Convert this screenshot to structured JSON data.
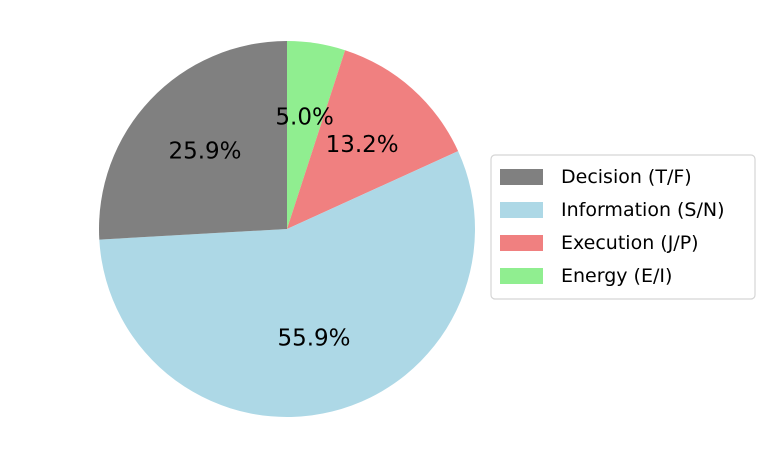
{
  "chart_data": {
    "type": "pie",
    "start_angle_deg": 90,
    "direction": "clockwise",
    "legend_position": "right",
    "slices": [
      {
        "label": "Energy (E/I)",
        "value": 5.0,
        "display": "5.0%",
        "color": "#90ee90"
      },
      {
        "label": "Execution (J/P)",
        "value": 13.2,
        "display": "13.2%",
        "color": "#f08080"
      },
      {
        "label": "Information (S/N)",
        "value": 55.9,
        "display": "55.9%",
        "color": "#add8e6"
      },
      {
        "label": "Decision (T/F)",
        "value": 25.9,
        "display": "25.9%",
        "color": "#808080"
      }
    ],
    "legend_order": [
      "Decision (T/F)",
      "Information (S/N)",
      "Execution (J/P)",
      "Energy (E/I)"
    ]
  }
}
